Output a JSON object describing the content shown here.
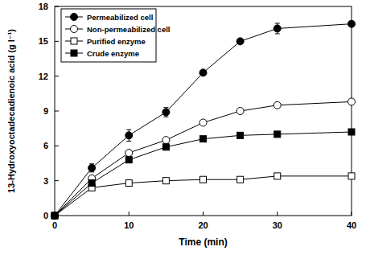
{
  "chart_data": {
    "type": "line",
    "x_label": "Time (min)",
    "y_label": "13-Hydroxyoctadecadienoic acid (g l⁻¹)",
    "x": [
      0,
      5,
      10,
      15,
      20,
      25,
      30,
      40
    ],
    "xlim": [
      0,
      40
    ],
    "xticks": [
      0,
      10,
      20,
      30,
      40
    ],
    "ylim": [
      0,
      18
    ],
    "yticks": [
      0,
      3,
      6,
      9,
      12,
      15,
      18
    ],
    "grid": false,
    "legend": "upper-left",
    "series": [
      {
        "name": "Permeabilized cell",
        "color": "#000000",
        "marker": "filled-circle",
        "line_style": "solid",
        "values": [
          0,
          4.1,
          6.9,
          8.9,
          12.3,
          15.0,
          16.1,
          16.5
        ],
        "errors": [
          0,
          0.35,
          0.5,
          0.4,
          0.2,
          0.2,
          0.45,
          0.2
        ]
      },
      {
        "name": "Non-permeabilized cell",
        "color": "#000000",
        "marker": "open-circle",
        "line_style": "solid",
        "values": [
          0,
          3.2,
          5.4,
          6.5,
          8.0,
          9.0,
          9.5,
          9.8
        ]
      },
      {
        "name": "Purified enzyme",
        "color": "#000000",
        "marker": "open-square",
        "line_style": "solid",
        "values": [
          0,
          2.4,
          2.8,
          3.0,
          3.1,
          3.1,
          3.4,
          3.4
        ]
      },
      {
        "name": "Crude enzyme",
        "color": "#000000",
        "marker": "filled-square",
        "line_style": "solid",
        "values": [
          0,
          2.8,
          4.8,
          5.9,
          6.6,
          6.9,
          7.0,
          7.2
        ]
      }
    ]
  }
}
